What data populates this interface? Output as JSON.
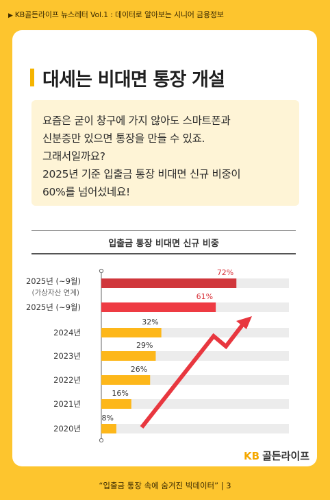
{
  "header": {
    "breadcrumb": "KB골든라이프 뉴스레터 Vol.1 : 데이터로 알아보는 시니어 금융정보"
  },
  "title": "대세는 비대면 통장 개설",
  "intro": {
    "lines": [
      "요즘은 굳이 창구에 가지 않아도 스마트폰과",
      "신분증만 있으면 통장을 만들 수 있죠.",
      "그래서일까요?",
      "2025년 기준 입출금 통장 비대면 신규 비중이",
      "60%를 넘어섰네요!"
    ]
  },
  "chart_data": {
    "type": "bar",
    "orientation": "horizontal",
    "title": "입출금 통장 비대면 신규 비중",
    "categories": [
      "2025년 (~9월)",
      "2025년 (~9월)",
      "2024년",
      "2023년",
      "2022년",
      "2021년",
      "2020년"
    ],
    "sublabels": [
      "(가상자산 연계)",
      "",
      "",
      "",
      "",
      "",
      ""
    ],
    "values": [
      72,
      61,
      32,
      29,
      26,
      16,
      8
    ],
    "value_labels": [
      "72%",
      "61%",
      "32%",
      "29%",
      "26%",
      "16%",
      "8%"
    ],
    "xlim": [
      0,
      100
    ],
    "colors": {
      "highlight_dark": "#D0373C",
      "highlight": "#EE3B43",
      "normal": "#FDB71A",
      "track": "#ECECEC",
      "trend_arrow": "#E8373F"
    },
    "grid": false,
    "legend": "none"
  },
  "logo": {
    "kb": "KB",
    "name": "골든라이프"
  },
  "footer": {
    "text": "“입출금 통장 속에 숨겨진 빅데이터”  |  3"
  }
}
